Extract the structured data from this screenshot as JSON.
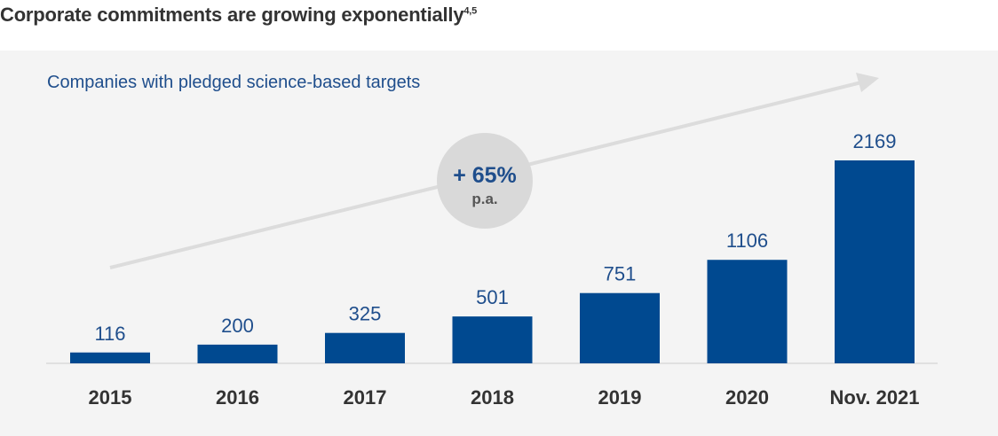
{
  "heading": {
    "text": "Corporate commitments are growing exponentially",
    "superscript": "4,5"
  },
  "subtitle": "Companies with pledged science-based targets",
  "growth_badge": {
    "value": "+ 65%",
    "unit": "p.a."
  },
  "colors": {
    "bar": "#004990",
    "value_label": "#1f4e8c",
    "category_label": "#333333",
    "panel": "#f4f4f4",
    "arrow": "#dcdcdc",
    "badge": "#d9d9d9"
  },
  "chart_data": {
    "type": "bar",
    "title": "Companies with pledged science-based targets",
    "categories": [
      "2015",
      "2016",
      "2017",
      "2018",
      "2019",
      "2020",
      "Nov. 2021"
    ],
    "values": [
      116,
      200,
      325,
      501,
      751,
      1106,
      2169
    ],
    "value_labels": [
      "116",
      "200",
      "325",
      "501",
      "751",
      "1106",
      "2169"
    ],
    "xlabel": "",
    "ylabel": "",
    "ylim": [
      0,
      2169
    ],
    "grid": false,
    "legend": "none",
    "annotation": "+ 65% p.a."
  }
}
